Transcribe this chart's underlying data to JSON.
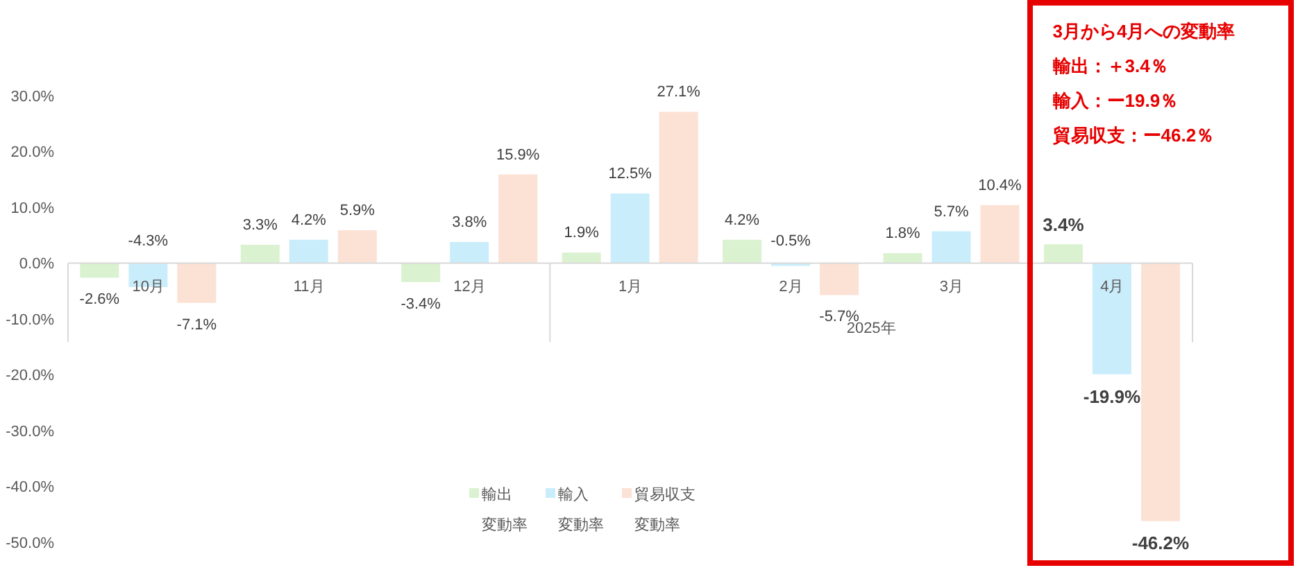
{
  "chart_data": {
    "type": "bar",
    "categories": [
      "10月",
      "11月",
      "12月",
      "1月",
      "2月",
      "3月",
      "4月"
    ],
    "series": [
      {
        "name": "輸出変動率",
        "color": "#daf2d0",
        "values": [
          -2.6,
          3.3,
          -3.4,
          1.9,
          4.2,
          1.8,
          3.4
        ],
        "value_labels": [
          "-2.6%",
          "3.3%",
          "-3.4%",
          "1.9%",
          "4.2%",
          "1.8%",
          "3.4%"
        ]
      },
      {
        "name": "輸入変動率",
        "color": "#caedfb",
        "values": [
          -4.3,
          4.2,
          3.8,
          12.5,
          -0.5,
          5.7,
          -19.9
        ],
        "value_labels": [
          "-4.3%",
          "4.2%",
          "3.8%",
          "12.5%",
          "-0.5%",
          "5.7%",
          "-19.9%"
        ]
      },
      {
        "name": "貿易収支変動率",
        "color": "#fbe2d5",
        "values": [
          -7.1,
          5.9,
          15.9,
          27.1,
          -5.7,
          10.4,
          -46.2
        ],
        "value_labels": [
          "-7.1%",
          "5.9%",
          "15.9%",
          "27.1%",
          "-5.7%",
          "10.4%",
          "-46.2%"
        ]
      }
    ],
    "ylim": [
      -50,
      30
    ],
    "yticks": [
      {
        "value": -50,
        "label": "-50.0%"
      },
      {
        "value": -40,
        "label": "-40.0%"
      },
      {
        "value": -30,
        "label": "-30.0%"
      },
      {
        "value": -20,
        "label": "-20.0%"
      },
      {
        "value": -10,
        "label": "-10.0%"
      },
      {
        "value": 0,
        "label": "0.0%"
      },
      {
        "value": 10,
        "label": "10.0%"
      },
      {
        "value": 20,
        "label": "20.0%"
      },
      {
        "value": 30,
        "label": "30.0%"
      }
    ],
    "annotations": [
      "2025年",
      "3月から4月への変動率",
      "輸出：＋3.4％",
      "輸入：ー19.9％",
      "貿易収支：ー46.2％"
    ],
    "legend": "bottom"
  }
}
